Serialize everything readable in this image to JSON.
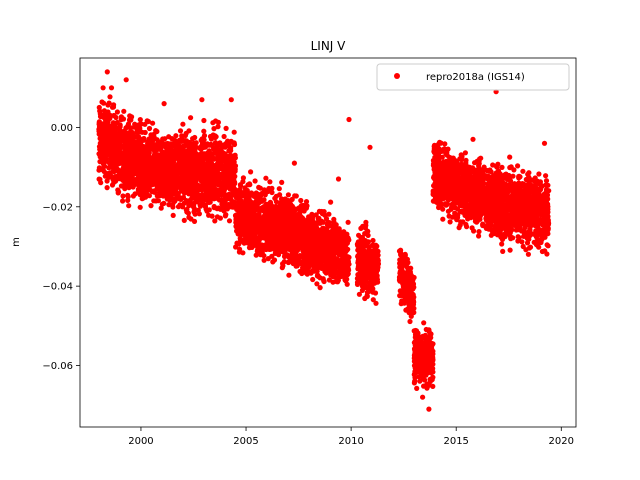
{
  "chart_data": {
    "type": "scatter",
    "title": "LINJ V",
    "xlabel": "",
    "ylabel": "m",
    "xlim": [
      1997.1,
      2020.7
    ],
    "ylim": [
      -0.0755,
      0.0175
    ],
    "xticks": [
      2000,
      2005,
      2010,
      2015,
      2020
    ],
    "yticks": [
      -0.06,
      -0.04,
      -0.02,
      0.0
    ],
    "ytick_labels": [
      "−0.06",
      "−0.04",
      "−0.02",
      "0.00"
    ],
    "grid": false,
    "legend_position": "top-right",
    "series": [
      {
        "name": "repro2018a (IGS14)",
        "color": "#ff0000",
        "marker": "circle",
        "segments": [
          {
            "t0": 1998.0,
            "t1": 1999.5,
            "m0": -0.003,
            "m1": -0.008,
            "spread": 0.013
          },
          {
            "t0": 1999.5,
            "t1": 2001.5,
            "m0": -0.008,
            "m1": -0.011,
            "spread": 0.012
          },
          {
            "t0": 2001.5,
            "t1": 2004.5,
            "m0": -0.011,
            "m1": -0.012,
            "spread": 0.013
          },
          {
            "t0": 2004.5,
            "t1": 2006.5,
            "m0": -0.022,
            "m1": -0.025,
            "spread": 0.011
          },
          {
            "t0": 2006.5,
            "t1": 2009.9,
            "m0": -0.025,
            "m1": -0.033,
            "spread": 0.011
          },
          {
            "t0": 2010.3,
            "t1": 2011.3,
            "m0": -0.033,
            "m1": -0.036,
            "spread": 0.01
          },
          {
            "t0": 2012.3,
            "t1": 2013.0,
            "m0": -0.036,
            "m1": -0.043,
            "spread": 0.009
          },
          {
            "t0": 2013.0,
            "t1": 2013.9,
            "m0": -0.057,
            "m1": -0.059,
            "spread": 0.009
          },
          {
            "t0": 2013.9,
            "t1": 2016.0,
            "m0": -0.012,
            "m1": -0.017,
            "spread": 0.011
          },
          {
            "t0": 2016.0,
            "t1": 2019.4,
            "m0": -0.017,
            "m1": -0.022,
            "spread": 0.012
          }
        ],
        "outliers": [
          [
            1998.4,
            0.014
          ],
          [
            1998.6,
            0.01
          ],
          [
            1999.3,
            0.012
          ],
          [
            2001.1,
            0.006
          ],
          [
            2002.9,
            0.007
          ],
          [
            2004.3,
            0.007
          ],
          [
            2009.9,
            0.002
          ],
          [
            2010.9,
            -0.005
          ],
          [
            2016.9,
            0.009
          ],
          [
            2007.3,
            -0.009
          ],
          [
            2009.4,
            -0.013
          ],
          [
            1998.2,
            0.01
          ],
          [
            2013.7,
            -0.071
          ],
          [
            2013.4,
            -0.068
          ],
          [
            2019.2,
            -0.004
          ],
          [
            2015.8,
            -0.003
          ]
        ]
      }
    ]
  }
}
